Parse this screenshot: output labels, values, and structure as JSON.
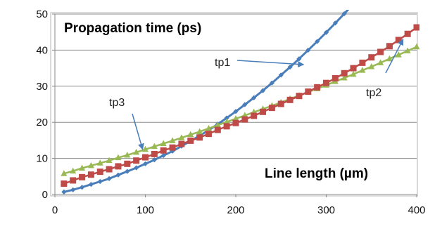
{
  "chart_data": {
    "type": "line",
    "title": "Propagation time  (ps)",
    "xlabel": "Line length (µm)",
    "ylabel": "",
    "xlim": [
      0,
      400
    ],
    "ylim": [
      0,
      50
    ],
    "x_ticks": [
      0,
      100,
      200,
      300,
      400
    ],
    "y_ticks": [
      0,
      10,
      20,
      30,
      40,
      50
    ],
    "grid": "horizontal",
    "legend": "none",
    "colors": {
      "tp1": "#4a7ebb",
      "tp2": "#be4b48",
      "tp3": "#98b954"
    },
    "series": [
      {
        "name": "tp1",
        "marker": "diamond",
        "x": [
          10,
          20,
          30,
          40,
          50,
          60,
          70,
          80,
          90,
          100,
          110,
          120,
          130,
          140,
          150,
          160,
          170,
          180,
          190,
          200,
          210,
          220,
          230,
          240,
          250,
          260,
          270,
          280,
          290,
          300,
          310,
          320,
          330,
          340
        ],
        "y": [
          0.7,
          1.3,
          2.0,
          2.8,
          3.6,
          4.4,
          5.4,
          6.4,
          7.4,
          8.5,
          9.6,
          10.8,
          12.0,
          13.4,
          14.8,
          16.3,
          17.8,
          19.5,
          21.2,
          23.0,
          24.9,
          26.8,
          28.8,
          30.9,
          33.1,
          35.3,
          37.6,
          40.0,
          42.4,
          44.9,
          47.5,
          50.1,
          52.8,
          55.6
        ]
      },
      {
        "name": "tp2",
        "marker": "square",
        "x": [
          10,
          20,
          30,
          40,
          50,
          60,
          70,
          80,
          90,
          100,
          110,
          120,
          130,
          140,
          150,
          160,
          170,
          180,
          190,
          200,
          210,
          220,
          230,
          240,
          250,
          260,
          270,
          280,
          290,
          300,
          310,
          320,
          330,
          340,
          350,
          360,
          370,
          380,
          390,
          400
        ],
        "y": [
          3.0,
          3.9,
          4.8,
          5.5,
          6.3,
          7.0,
          7.8,
          8.5,
          9.4,
          10.3,
          11.2,
          12.2,
          13.0,
          14.0,
          14.9,
          15.8,
          16.8,
          17.9,
          18.9,
          19.8,
          20.8,
          21.8,
          22.9,
          24.0,
          25.1,
          26.2,
          27.3,
          28.5,
          29.7,
          30.9,
          32.2,
          33.6,
          35.0,
          36.5,
          38.0,
          39.5,
          41.1,
          42.8,
          44.5,
          46.3
        ]
      },
      {
        "name": "tp3",
        "marker": "triangle",
        "x": [
          10,
          20,
          30,
          40,
          50,
          60,
          70,
          80,
          90,
          100,
          110,
          120,
          130,
          140,
          150,
          160,
          170,
          180,
          190,
          200,
          210,
          220,
          230,
          240,
          250,
          260,
          270,
          280,
          290,
          300,
          310,
          320,
          330,
          340,
          350,
          360,
          370,
          380,
          390,
          400
        ],
        "y": [
          5.8,
          6.5,
          7.3,
          8.0,
          8.7,
          9.4,
          10.2,
          10.9,
          11.7,
          12.5,
          13.3,
          14.1,
          14.9,
          15.7,
          16.6,
          17.4,
          18.3,
          19.2,
          20.1,
          21.0,
          21.9,
          22.8,
          23.7,
          24.6,
          25.5,
          26.5,
          27.4,
          28.4,
          29.3,
          30.3,
          31.3,
          32.3,
          33.3,
          34.4,
          35.4,
          36.5,
          37.6,
          38.7,
          39.8,
          40.9
        ]
      }
    ],
    "annotations": [
      {
        "label": "tp1",
        "target_x": 275,
        "target_y": 36.0
      },
      {
        "label": "tp2",
        "target_x": 385,
        "target_y": 43.0
      },
      {
        "label": "tp3",
        "target_x": 97,
        "target_y": 12.5
      }
    ]
  }
}
